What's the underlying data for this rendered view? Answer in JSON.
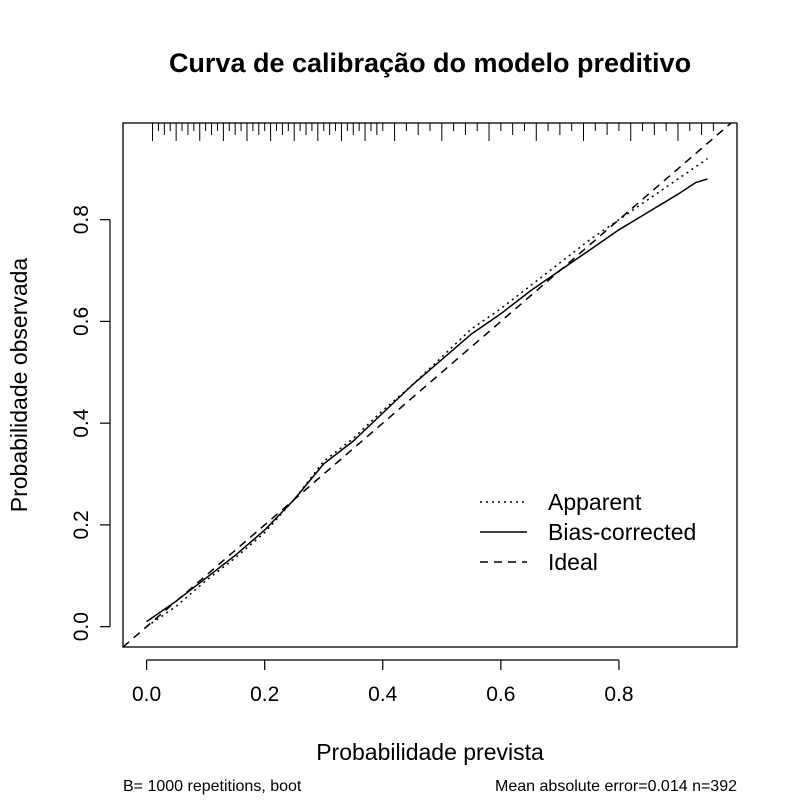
{
  "chart_data": {
    "type": "line",
    "title": "Curva de calibração do modelo preditivo",
    "xlabel": "Probabilidade prevista",
    "ylabel": "Probabilidade observada",
    "xlim": [
      -0.04,
      1.0
    ],
    "ylim": [
      -0.04,
      0.99
    ],
    "xticks": [
      0.0,
      0.2,
      0.4,
      0.6,
      0.8
    ],
    "yticks": [
      0.0,
      0.2,
      0.4,
      0.6,
      0.8
    ],
    "xtick_labels": [
      "0.0",
      "0.2",
      "0.4",
      "0.6",
      "0.8"
    ],
    "ytick_labels": [
      "0.0",
      "0.2",
      "0.4",
      "0.6",
      "0.8"
    ],
    "grid": false,
    "legend_position": "bottom-right",
    "series": [
      {
        "name": "Apparent",
        "linestyle": "dotted",
        "x": [
          0.0,
          0.05,
          0.1,
          0.15,
          0.2,
          0.25,
          0.3,
          0.35,
          0.4,
          0.45,
          0.5,
          0.55,
          0.6,
          0.65,
          0.7,
          0.75,
          0.8,
          0.85,
          0.9,
          0.95
        ],
        "y": [
          0.0,
          0.04,
          0.09,
          0.135,
          0.185,
          0.25,
          0.325,
          0.37,
          0.425,
          0.475,
          0.53,
          0.585,
          0.625,
          0.67,
          0.715,
          0.76,
          0.8,
          0.84,
          0.88,
          0.92
        ]
      },
      {
        "name": "Bias-corrected",
        "linestyle": "solid",
        "x": [
          0.0,
          0.05,
          0.1,
          0.15,
          0.2,
          0.25,
          0.3,
          0.35,
          0.4,
          0.45,
          0.5,
          0.55,
          0.6,
          0.65,
          0.7,
          0.75,
          0.8,
          0.85,
          0.9,
          0.93,
          0.95
        ],
        "y": [
          0.01,
          0.05,
          0.095,
          0.14,
          0.19,
          0.25,
          0.32,
          0.365,
          0.42,
          0.475,
          0.525,
          0.575,
          0.615,
          0.66,
          0.7,
          0.74,
          0.78,
          0.815,
          0.85,
          0.873,
          0.88
        ]
      },
      {
        "name": "Ideal",
        "linestyle": "dashed",
        "x": [
          -0.04,
          0.99
        ],
        "y": [
          -0.04,
          0.99
        ]
      }
    ],
    "rug": [
      0.01,
      0.02,
      0.03,
      0.04,
      0.05,
      0.06,
      0.07,
      0.08,
      0.09,
      0.1,
      0.11,
      0.12,
      0.13,
      0.14,
      0.15,
      0.16,
      0.17,
      0.18,
      0.19,
      0.2,
      0.21,
      0.22,
      0.23,
      0.24,
      0.25,
      0.26,
      0.27,
      0.28,
      0.29,
      0.3,
      0.31,
      0.32,
      0.33,
      0.34,
      0.35,
      0.36,
      0.37,
      0.38,
      0.39,
      0.4,
      0.42,
      0.44,
      0.46,
      0.48,
      0.5,
      0.52,
      0.54,
      0.56,
      0.58,
      0.6,
      0.62,
      0.64,
      0.66,
      0.68,
      0.7,
      0.72,
      0.74,
      0.76,
      0.78,
      0.8,
      0.82,
      0.84,
      0.86,
      0.88,
      0.9,
      0.92,
      0.94,
      0.96
    ],
    "footer_left": "B= 1000 repetitions, boot",
    "footer_right": "Mean absolute error=0.014 n=392"
  }
}
